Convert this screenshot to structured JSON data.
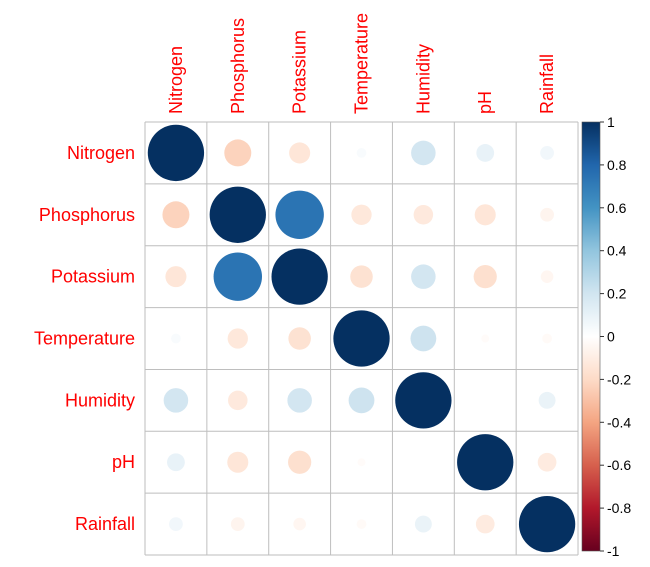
{
  "chart_data": {
    "type": "heatmap",
    "variables": [
      "Nitrogen",
      "Phosphorus",
      "Potassium",
      "Temperature",
      "Humidity",
      "pH",
      "Rainfall"
    ],
    "matrix": [
      [
        1.0,
        -0.23,
        -0.14,
        0.03,
        0.19,
        0.1,
        0.06
      ],
      [
        -0.23,
        1.0,
        0.74,
        -0.13,
        -0.12,
        -0.14,
        -0.06
      ],
      [
        -0.14,
        0.74,
        1.0,
        -0.16,
        0.19,
        -0.17,
        -0.05
      ],
      [
        0.03,
        -0.13,
        -0.16,
        1.0,
        0.21,
        -0.02,
        -0.03
      ],
      [
        0.19,
        -0.12,
        0.19,
        0.21,
        1.0,
        0.0,
        0.09
      ],
      [
        0.1,
        -0.14,
        -0.17,
        -0.02,
        0.0,
        1.0,
        -0.11
      ],
      [
        0.06,
        -0.06,
        -0.05,
        -0.03,
        0.09,
        -0.11,
        1.0
      ]
    ],
    "colorbar": {
      "min": -1,
      "max": 1,
      "tick_labels": [
        "1",
        "0.8",
        "0.6",
        "0.4",
        "0.2",
        "0",
        "-0.2",
        "-0.4",
        "-0.6",
        "-0.8",
        "-1"
      ],
      "tick_values": [
        1,
        0.8,
        0.6,
        0.4,
        0.2,
        0,
        -0.2,
        -0.4,
        -0.6,
        -0.8,
        -1
      ]
    },
    "label_color": "#ff0000",
    "grid_color": "#bebebe",
    "method": "circle",
    "grid": true
  }
}
